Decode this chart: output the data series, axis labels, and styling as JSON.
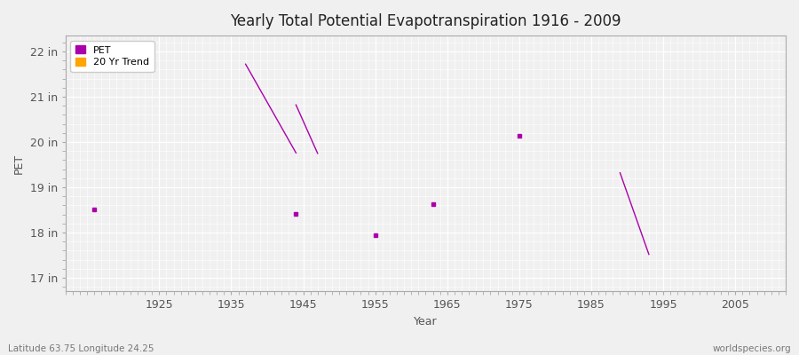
{
  "title": "Yearly Total Potential Evapotranspiration 1916 - 2009",
  "xlabel": "Year",
  "ylabel": "PET",
  "background_color": "#f0f0f0",
  "plot_bg_color": "#f0f0f0",
  "grid_color": "#ffffff",
  "xlim": [
    1912,
    2012
  ],
  "ylim": [
    16.7,
    22.35
  ],
  "ytick_labels": [
    "17 in",
    "18 in",
    "19 in",
    "20 in",
    "21 in",
    "22 in"
  ],
  "ytick_values": [
    17,
    18,
    19,
    20,
    21,
    22
  ],
  "xtick_values": [
    1925,
    1935,
    1945,
    1955,
    1965,
    1975,
    1985,
    1995,
    2005
  ],
  "pet_color": "#aa00aa",
  "trend_color": "#ffa500",
  "annotation_lat": "Latitude 63.75 Longitude 24.25",
  "annotation_source": "worldspecies.org",
  "pet_points": [
    [
      1916,
      18.52
    ],
    [
      1944,
      18.42
    ],
    [
      1955,
      17.94
    ],
    [
      1963,
      18.62
    ],
    [
      1975,
      20.13
    ]
  ],
  "trend_lines": [
    [
      [
        1937,
        21.72
      ],
      [
        1944,
        19.76
      ]
    ],
    [
      [
        1944,
        20.82
      ],
      [
        1947,
        19.75
      ]
    ],
    [
      [
        1989,
        19.32
      ],
      [
        1993,
        17.52
      ]
    ]
  ]
}
